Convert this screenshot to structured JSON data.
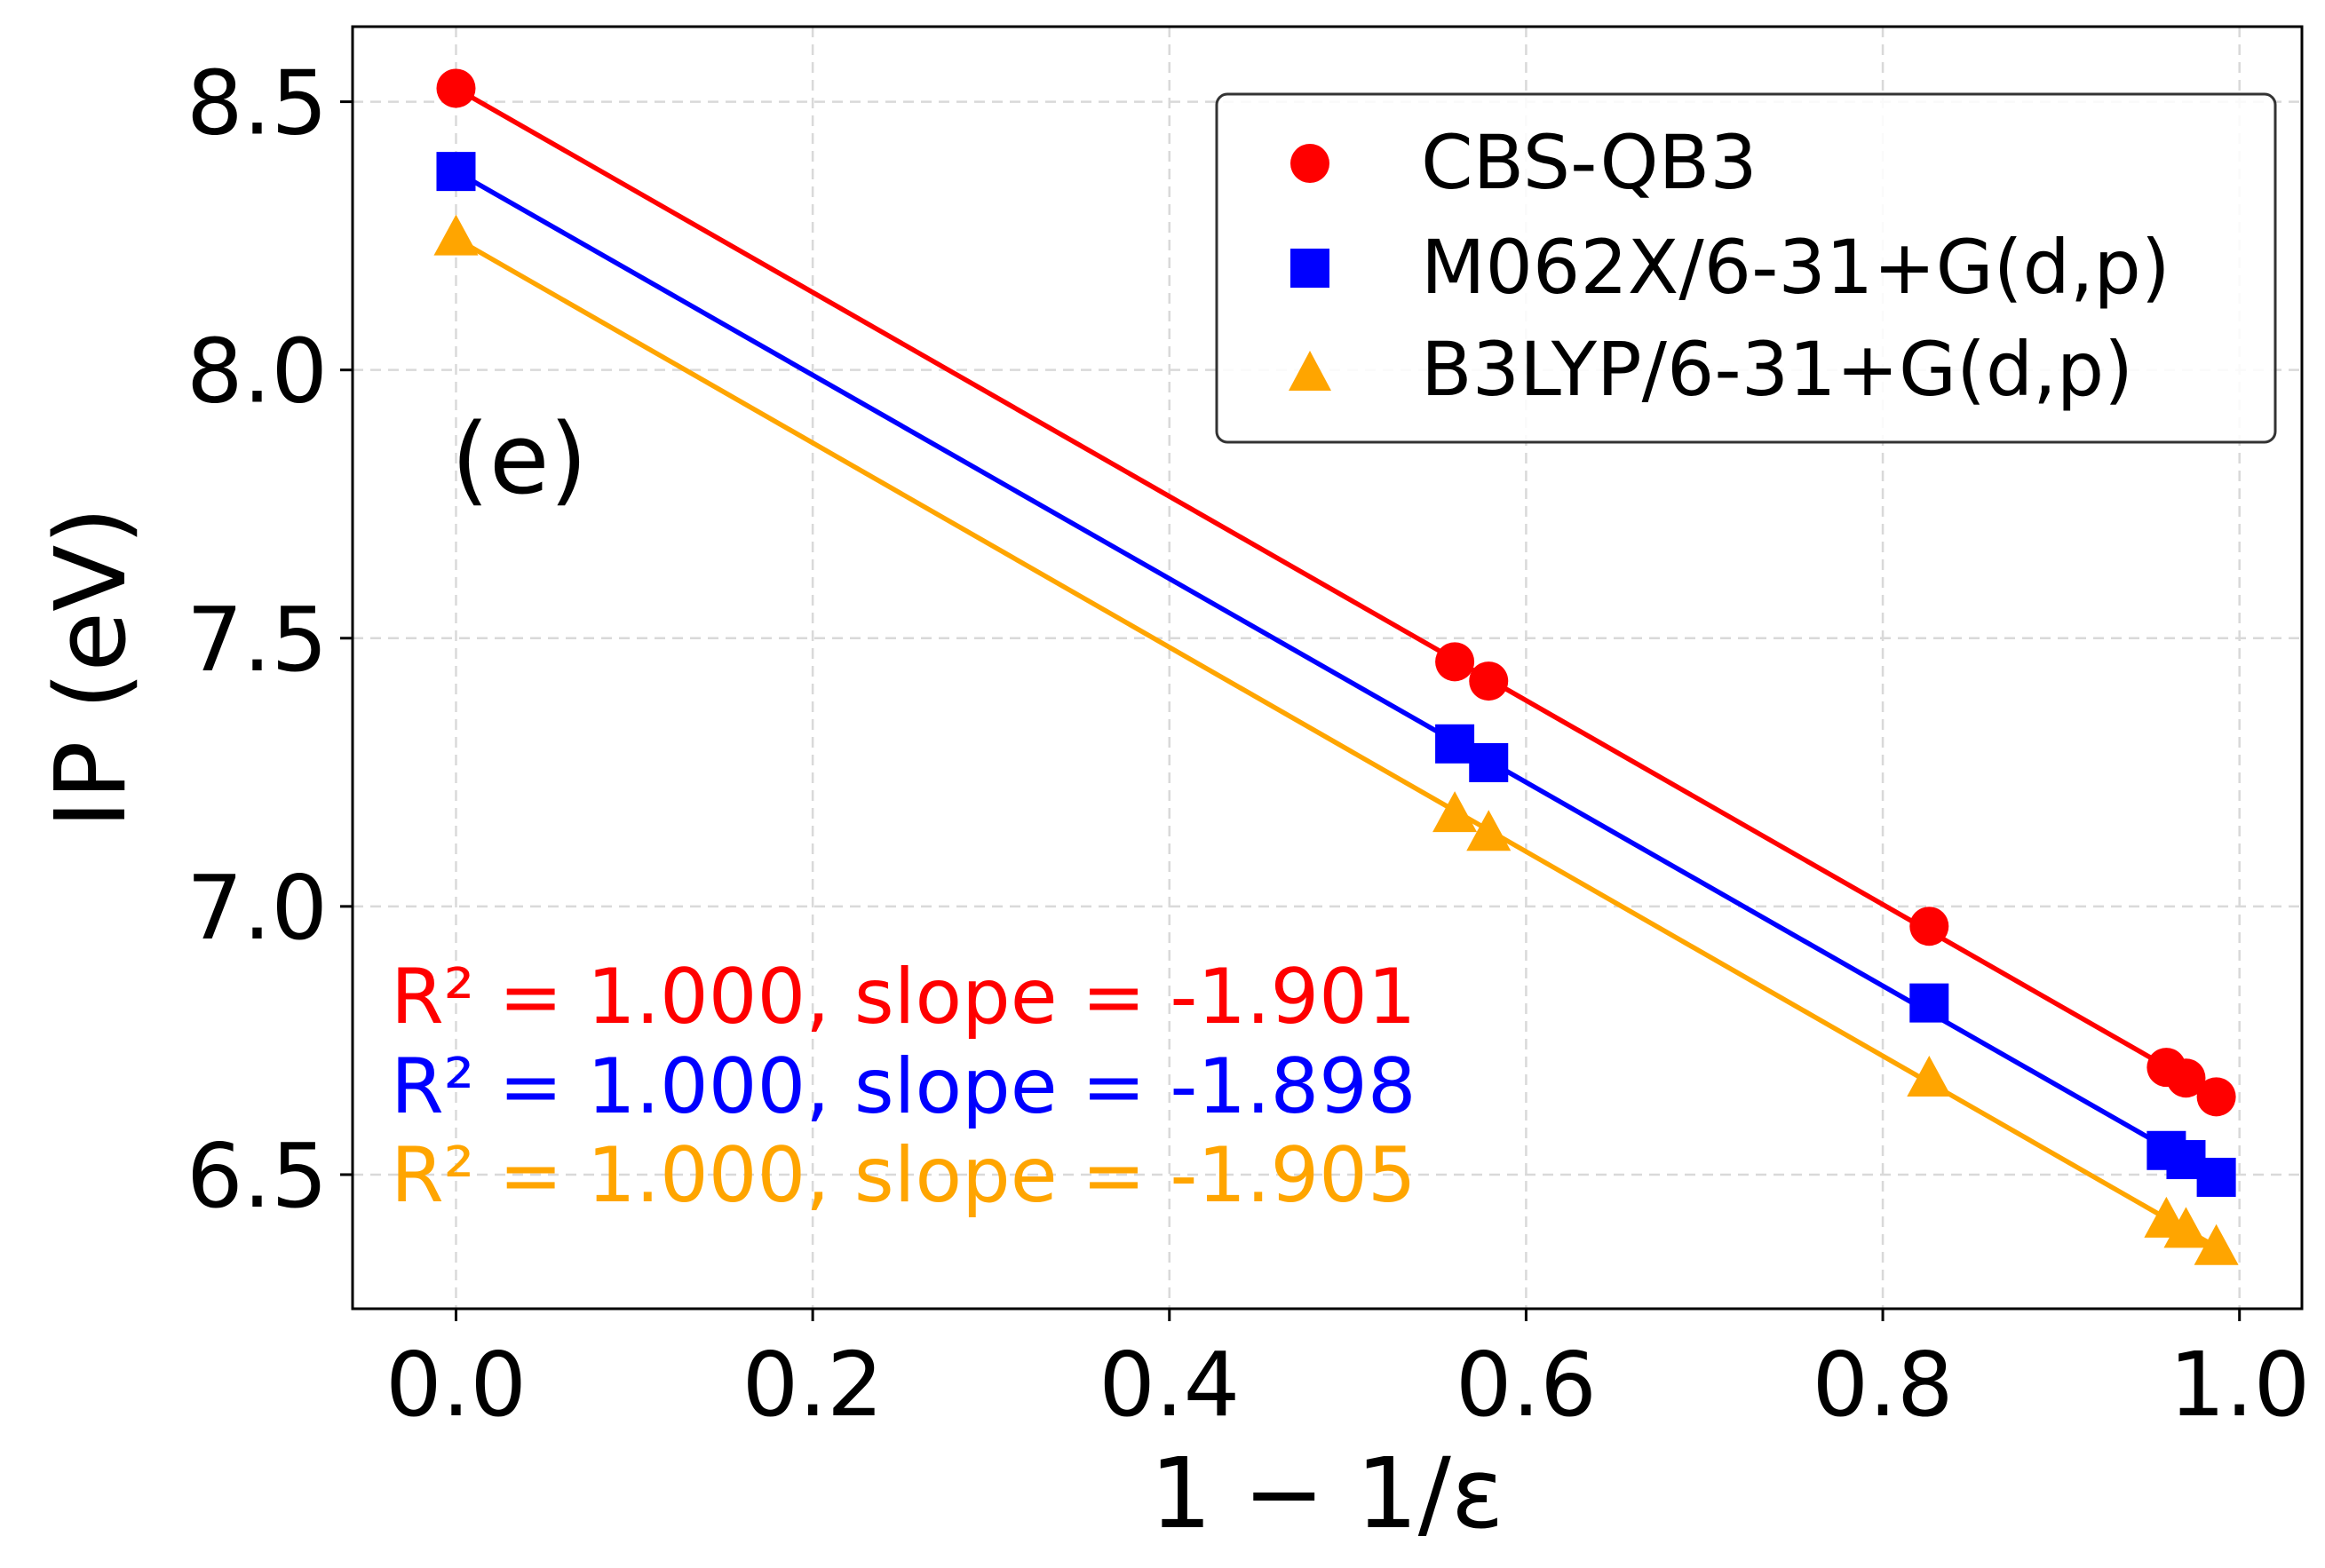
{
  "chart_data": {
    "type": "scatter",
    "panel_label": "(e)",
    "xlabel": "1 − 1/ε",
    "ylabel": "IP (eV)",
    "xlim": [
      -0.058,
      1.035
    ],
    "ylim": [
      6.25,
      8.64
    ],
    "xticks": [
      {
        "value": 0.0,
        "label": "0.0"
      },
      {
        "value": 0.2,
        "label": "0.2"
      },
      {
        "value": 0.4,
        "label": "0.4"
      },
      {
        "value": 0.6,
        "label": "0.6"
      },
      {
        "value": 0.8,
        "label": "0.8"
      },
      {
        "value": 1.0,
        "label": "1.0"
      }
    ],
    "yticks": [
      {
        "value": 6.5,
        "label": "6.5"
      },
      {
        "value": 7.0,
        "label": "7.0"
      },
      {
        "value": 7.5,
        "label": "7.5"
      },
      {
        "value": 8.0,
        "label": "8.0"
      },
      {
        "value": 8.5,
        "label": "8.5"
      }
    ],
    "grid": true,
    "legend_position": "top-right",
    "series": [
      {
        "name": "CBS-QB3",
        "color": "#ff0000",
        "marker": "circle",
        "x": [
          0.0,
          0.56,
          0.579,
          0.826,
          0.959,
          0.97,
          0.987
        ],
        "y": [
          8.525,
          7.456,
          7.42,
          6.963,
          6.7,
          6.68,
          6.645
        ],
        "fit": {
          "x": [
            0.0,
            0.987
          ],
          "y": [
            8.525,
            6.648
          ]
        },
        "annotation": "R² = 1.000, slope = -1.901"
      },
      {
        "name": "M062X/6-31+G(d,p)",
        "color": "#0000ff",
        "marker": "square",
        "x": [
          0.0,
          0.56,
          0.579,
          0.826,
          0.959,
          0.97,
          0.987
        ],
        "y": [
          8.37,
          7.303,
          7.268,
          6.82,
          6.545,
          6.528,
          6.495
        ],
        "fit": {
          "x": [
            0.0,
            0.987
          ],
          "y": [
            8.37,
            6.497
          ]
        },
        "annotation": "R² = 1.000, slope = -1.898"
      },
      {
        "name": "B3LYP/6-31+G(d,p)",
        "color": "#ffa500",
        "marker": "triangle",
        "x": [
          0.0,
          0.56,
          0.579,
          0.826,
          0.959,
          0.97,
          0.987
        ],
        "y": [
          8.245,
          7.17,
          7.135,
          6.677,
          6.414,
          6.395,
          6.363
        ],
        "fit": {
          "x": [
            0.0,
            0.987
          ],
          "y": [
            8.245,
            6.365
          ]
        },
        "annotation": "R² = 1.000, slope = -1.905"
      }
    ]
  }
}
